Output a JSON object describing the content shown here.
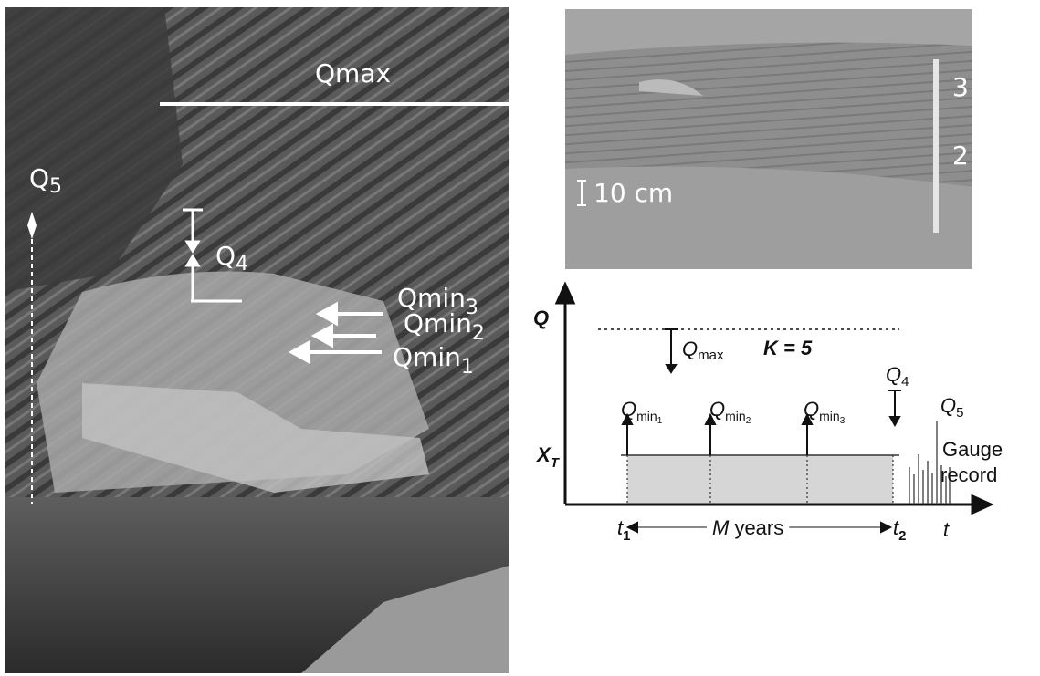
{
  "photo_left": {
    "qmax": "Qmax",
    "q5": {
      "base": "Q",
      "sub": "5"
    },
    "q4": {
      "base": "Q",
      "sub": "4"
    },
    "qmin3": {
      "base": "Qmin",
      "sub": "3"
    },
    "qmin2": {
      "base": "Qmin",
      "sub": "2"
    },
    "qmin1": {
      "base": "Qmin",
      "sub": "1"
    }
  },
  "photo_right": {
    "scale": "10 cm",
    "mark_3": "3",
    "mark_2": "2"
  },
  "diagram": {
    "y_axis": "Q",
    "qmax": {
      "base": "Q",
      "sub": "max"
    },
    "k": "K = 5",
    "q4": {
      "base": "Q",
      "sub": "4"
    },
    "q5": {
      "base": "Q",
      "sub": "5"
    },
    "qmin1": {
      "base": "Q",
      "sub": "min",
      "subsub": "1"
    },
    "qmin2": {
      "base": "Q",
      "sub": "min",
      "subsub": "2"
    },
    "qmin3": {
      "base": "Q",
      "sub": "min",
      "subsub": "3"
    },
    "xt": {
      "base": "X",
      "sub": "T"
    },
    "gauge": [
      "Gauge",
      "record"
    ],
    "t1": {
      "base": "t",
      "sub": "1"
    },
    "m_years": {
      "base": "M",
      "rest": " years"
    },
    "t2": {
      "base": "t",
      "sub": "2"
    },
    "t_axis": "t"
  }
}
